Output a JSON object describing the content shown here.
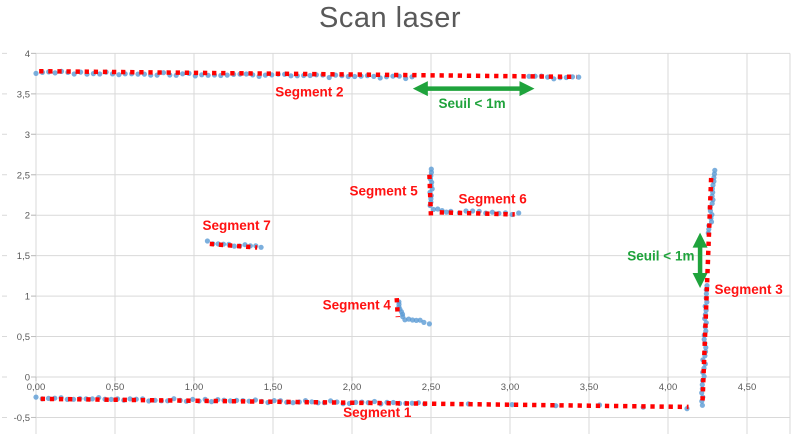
{
  "chart_data": {
    "type": "scatter",
    "title": "Scan laser",
    "x_axis": {
      "range": [
        0,
        4.772
      ],
      "tick_values": [
        0,
        0.5,
        1,
        1.5,
        2,
        2.5,
        3,
        3.5,
        4,
        4.5
      ],
      "tick_labels": [
        "0,00",
        "0,50",
        "1,00",
        "1,50",
        "2,00",
        "2,50",
        "3,00",
        "3,50",
        "4,00",
        "4,50"
      ]
    },
    "y_axis": {
      "range": [
        -0.5,
        4
      ],
      "tick_values": [
        4,
        3.5,
        3,
        2.5,
        2,
        1.5,
        1,
        0.5,
        0,
        -0.5
      ],
      "tick_labels": [
        "4",
        "3,5",
        "3",
        "2,5",
        "2",
        "1,5",
        "1",
        "0,5",
        "0",
        "-0,5"
      ]
    },
    "grid": true,
    "legend": "none",
    "series": [
      {
        "name": "Segment 1",
        "label": {
          "text": "Segment 1",
          "x": 2.16,
          "y": -0.44
        },
        "fit_line": {
          "x1": 0.03,
          "y1": -0.27,
          "x2": 4.13,
          "y2": -0.37
        },
        "point_runs": [
          {
            "x1": 0.0,
            "y1": -0.26,
            "x2": 2.42,
            "y2": -0.325,
            "n": 62
          },
          {
            "x1": 2.46,
            "y1": -0.33,
            "x2": 4.12,
            "y2": -0.375,
            "n": 7
          }
        ]
      },
      {
        "name": "Segment 2",
        "label": {
          "text": "Segment 2",
          "x": 1.73,
          "y": 3.52
        },
        "fit_line": {
          "x1": 0.02,
          "y1": 3.78,
          "x2": 3.42,
          "y2": 3.71
        },
        "point_runs": [
          {
            "x1": 0.0,
            "y1": 3.765,
            "x2": 2.38,
            "y2": 3.705,
            "n": 60
          },
          {
            "x1": 3.12,
            "y1": 3.71,
            "x2": 3.435,
            "y2": 3.69,
            "n": 9
          }
        ]
      },
      {
        "name": "Segment 3",
        "label": {
          "text": "Segment 3",
          "x": 4.51,
          "y": 1.08
        },
        "fit_line": {
          "x1": 4.273,
          "y1": 2.46,
          "x2": 4.218,
          "y2": -0.33
        },
        "point_runs": [
          {
            "x1": 4.29,
            "y1": 2.555,
            "x2": 4.263,
            "y2": 1.78,
            "n": 18
          },
          {
            "x1": 4.245,
            "y1": 1.13,
            "x2": 4.218,
            "y2": -0.35,
            "n": 30
          }
        ]
      },
      {
        "name": "Segment 4",
        "label": {
          "text": "Segment 4",
          "x": 2.03,
          "y": 0.89
        },
        "fit_line": {
          "x1": 2.283,
          "y1": 0.975,
          "x2": 2.29,
          "y2": 0.74
        },
        "point_runs": [
          {
            "x1": 2.29,
            "y1": 0.93,
            "x2": 2.325,
            "y2": 0.745,
            "n": 7
          },
          {
            "x1": 2.335,
            "y1": 0.705,
            "x2": 2.455,
            "y2": 0.69,
            "n": 6
          },
          {
            "x1": 2.49,
            "y1": 0.665,
            "x2": 2.49,
            "y2": 0.665,
            "n": 1
          }
        ]
      },
      {
        "name": "Segment 5",
        "label": {
          "text": "Segment 5",
          "x": 2.2,
          "y": 2.3
        },
        "fit_line": {
          "x1": 2.49,
          "y1": 2.5,
          "x2": 2.5,
          "y2": 1.97
        },
        "point_runs": [
          {
            "x1": 2.505,
            "y1": 2.57,
            "x2": 2.495,
            "y2": 2.12,
            "n": 12
          },
          {
            "x1": 2.515,
            "y1": 2.07,
            "x2": 2.625,
            "y2": 2.035,
            "n": 5
          }
        ]
      },
      {
        "name": "Segment 6",
        "label": {
          "text": "Segment 6",
          "x": 2.89,
          "y": 2.2
        },
        "fit_line": {
          "x1": 2.555,
          "y1": 2.035,
          "x2": 3.03,
          "y2": 2.01
        },
        "point_runs": [
          {
            "x1": 2.68,
            "y1": 2.045,
            "x2": 3.055,
            "y2": 2.015,
            "n": 10
          }
        ]
      },
      {
        "name": "Segment 7",
        "label": {
          "text": "Segment 7",
          "x": 1.27,
          "y": 1.87
        },
        "fit_line": {
          "x1": 1.1,
          "y1": 1.645,
          "x2": 1.4,
          "y2": 1.6
        },
        "point_runs": [
          {
            "x1": 1.085,
            "y1": 1.665,
            "x2": 1.425,
            "y2": 1.605,
            "n": 11
          }
        ]
      }
    ],
    "annotations": [
      {
        "type": "double-arrow",
        "orient": "h",
        "x1": 2.385,
        "x2": 3.155,
        "y": 3.565,
        "label": {
          "text": "Seuil < 1m",
          "x": 2.76,
          "y": 3.375
        }
      },
      {
        "type": "double-arrow",
        "orient": "v",
        "x": 4.203,
        "y1": 1.785,
        "y2": 1.1,
        "label": {
          "text": "Seuil < 1m",
          "x": 3.955,
          "y": 1.49
        }
      }
    ],
    "colors": {
      "points": "#5B9BD5",
      "fit_line": "#FF0000",
      "segment_label": "#FF1212",
      "annotation": "#1FA33C",
      "title": "#595959",
      "grid": "#D9D9D9",
      "axis": "#BFBFBF",
      "tick_text": "#595959"
    }
  }
}
